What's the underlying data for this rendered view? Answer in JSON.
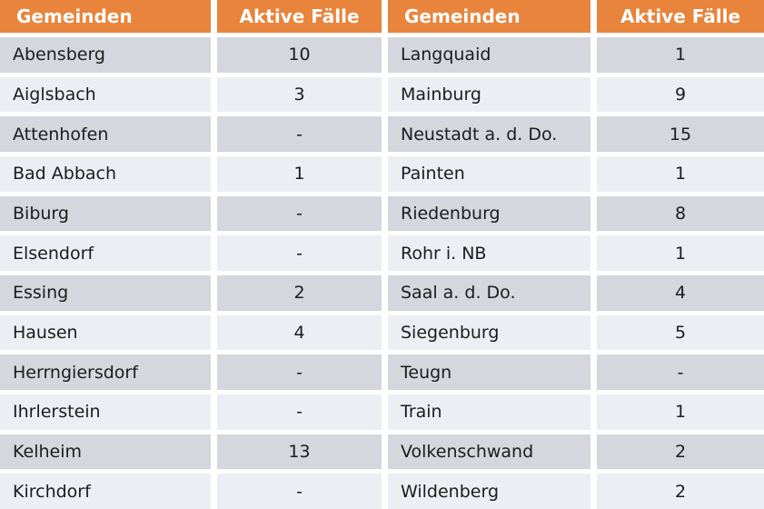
{
  "table": {
    "headers": [
      "Gemeinden",
      "Aktive Fälle",
      "Gemeinden",
      "Aktive Fälle"
    ],
    "rows": [
      [
        "Abensberg",
        "10",
        "Langquaid",
        "1"
      ],
      [
        "Aiglsbach",
        "3",
        "Mainburg",
        "9"
      ],
      [
        "Attenhofen",
        "-",
        "Neustadt a. d. Do.",
        "15"
      ],
      [
        "Bad Abbach",
        "1",
        "Painten",
        "1"
      ],
      [
        "Biburg",
        "-",
        "Riedenburg",
        "8"
      ],
      [
        "Elsendorf",
        "-",
        "Rohr i. NB",
        "1"
      ],
      [
        "Essing",
        "2",
        "Saal a. d. Do.",
        "4"
      ],
      [
        "Hausen",
        "4",
        "Siegenburg",
        "5"
      ],
      [
        "Herrngiersdorf",
        "-",
        "Teugn",
        "-"
      ],
      [
        "Ihrlerstein",
        "-",
        "Train",
        "1"
      ],
      [
        "Kelheim",
        "13",
        "Volkenschwand",
        "2"
      ],
      [
        "Kirchdorf",
        "-",
        "Wildenberg",
        "2"
      ]
    ]
  },
  "colors": {
    "header_bg": "#E8843C",
    "header_text": "#FFFFFF",
    "row_dark": "#D5D6DE",
    "row_light": "#EDEEF3",
    "cell_text": "#1C1C1C"
  },
  "chart_data": {
    "type": "table",
    "title": "",
    "columns": [
      "Gemeinden",
      "Aktive Fälle"
    ],
    "layout": "two column-pairs side by side, orange header row, alternating gray row stripes",
    "rows": [
      [
        "Abensberg",
        10
      ],
      [
        "Aiglsbach",
        3
      ],
      [
        "Attenhofen",
        "-"
      ],
      [
        "Bad Abbach",
        1
      ],
      [
        "Biburg",
        "-"
      ],
      [
        "Elsendorf",
        "-"
      ],
      [
        "Essing",
        2
      ],
      [
        "Hausen",
        4
      ],
      [
        "Herrngiersdorf",
        "-"
      ],
      [
        "Ihrlerstein",
        "-"
      ],
      [
        "Kelheim",
        13
      ],
      [
        "Kirchdorf",
        "-"
      ],
      [
        "Langquaid",
        1
      ],
      [
        "Mainburg",
        9
      ],
      [
        "Neustadt a. d. Do.",
        15
      ],
      [
        "Painten",
        1
      ],
      [
        "Riedenburg",
        8
      ],
      [
        "Rohr i. NB",
        1
      ],
      [
        "Saal a. d. Do.",
        4
      ],
      [
        "Siegenburg",
        5
      ],
      [
        "Teugn",
        "-"
      ],
      [
        "Train",
        1
      ],
      [
        "Volkenschwand",
        2
      ],
      [
        "Wildenberg",
        2
      ]
    ]
  }
}
